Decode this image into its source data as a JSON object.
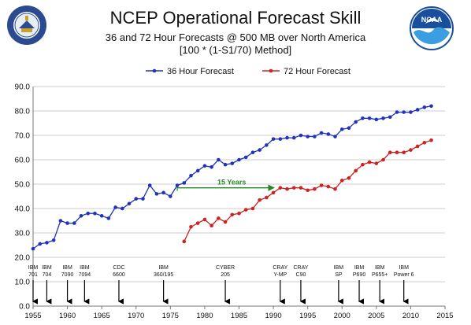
{
  "header": {
    "title": "NCEP Operational Forecast Skill",
    "subtitle_1": "36 and 72 Hour Forecasts @ 500 MB over North America",
    "subtitle_2": "[100 * (1-S1/70) Method]",
    "logo_left": "department-of-commerce-seal",
    "logo_right": "NOAA"
  },
  "chart_data": {
    "type": "line",
    "title": "NCEP Operational Forecast Skill",
    "xlim": [
      1955,
      2015
    ],
    "ylim": [
      0,
      90
    ],
    "xticks": [
      1955,
      1960,
      1965,
      1970,
      1975,
      1980,
      1985,
      1990,
      1995,
      2000,
      2005,
      2010,
      2015
    ],
    "yticks": [
      0,
      10,
      20,
      30,
      40,
      50,
      60,
      70,
      80,
      90
    ],
    "y_tick_labels": [
      "0.0",
      "10.0",
      "20.0",
      "30.0",
      "40.0",
      "50.0",
      "60.0",
      "70.0",
      "80.0",
      "90.0"
    ],
    "grid": "horizontal",
    "legend_position": "top",
    "series": [
      {
        "name": "36 Hour Forecast",
        "color": "#2233bb",
        "points": [
          [
            1955,
            23.5
          ],
          [
            1956,
            25.5
          ],
          [
            1957,
            26.0
          ],
          [
            1958,
            27.0
          ],
          [
            1959,
            35.0
          ],
          [
            1960,
            34.0
          ],
          [
            1961,
            34.0
          ],
          [
            1962,
            37.0
          ],
          [
            1963,
            38.0
          ],
          [
            1964,
            38.0
          ],
          [
            1965,
            37.0
          ],
          [
            1966,
            36.0
          ],
          [
            1967,
            40.5
          ],
          [
            1968,
            40.0
          ],
          [
            1969,
            42.0
          ],
          [
            1970,
            44.0
          ],
          [
            1971,
            44.0
          ],
          [
            1972,
            49.5
          ],
          [
            1973,
            46.0
          ],
          [
            1974,
            46.5
          ],
          [
            1975,
            45.0
          ],
          [
            1976,
            49.5
          ],
          [
            1977,
            50.5
          ],
          [
            1978,
            53.5
          ],
          [
            1979,
            55.5
          ],
          [
            1980,
            57.5
          ],
          [
            1981,
            57.0
          ],
          [
            1982,
            60.0
          ],
          [
            1983,
            58.0
          ],
          [
            1984,
            58.5
          ],
          [
            1985,
            60.0
          ],
          [
            1986,
            61.0
          ],
          [
            1987,
            63.0
          ],
          [
            1988,
            64.0
          ],
          [
            1989,
            66.0
          ],
          [
            1990,
            68.5
          ],
          [
            1991,
            68.5
          ],
          [
            1992,
            69.0
          ],
          [
            1993,
            69.0
          ],
          [
            1994,
            70.0
          ],
          [
            1995,
            69.5
          ],
          [
            1996,
            69.5
          ],
          [
            1997,
            71.0
          ],
          [
            1998,
            70.5
          ],
          [
            1999,
            69.5
          ],
          [
            2000,
            72.5
          ],
          [
            2001,
            73.0
          ],
          [
            2002,
            75.5
          ],
          [
            2003,
            77.0
          ],
          [
            2004,
            77.0
          ],
          [
            2005,
            76.5
          ],
          [
            2006,
            77.0
          ],
          [
            2007,
            77.5
          ],
          [
            2008,
            79.5
          ],
          [
            2009,
            79.5
          ],
          [
            2010,
            79.5
          ],
          [
            2011,
            80.5
          ],
          [
            2012,
            81.5
          ],
          [
            2013,
            82.0
          ]
        ]
      },
      {
        "name": "72 Hour Forecast",
        "color": "#cc2222",
        "points": [
          [
            1977,
            26.5
          ],
          [
            1978,
            32.5
          ],
          [
            1979,
            34.0
          ],
          [
            1980,
            35.5
          ],
          [
            1981,
            33.0
          ],
          [
            1982,
            36.0
          ],
          [
            1983,
            34.5
          ],
          [
            1984,
            37.5
          ],
          [
            1985,
            38.0
          ],
          [
            1986,
            39.5
          ],
          [
            1987,
            40.0
          ],
          [
            1988,
            43.5
          ],
          [
            1989,
            44.5
          ],
          [
            1990,
            46.5
          ],
          [
            1991,
            48.5
          ],
          [
            1992,
            48.0
          ],
          [
            1993,
            48.5
          ],
          [
            1994,
            48.5
          ],
          [
            1995,
            47.5
          ],
          [
            1996,
            48.0
          ],
          [
            1997,
            49.5
          ],
          [
            1998,
            49.0
          ],
          [
            1999,
            48.0
          ],
          [
            2000,
            51.5
          ],
          [
            2001,
            52.5
          ],
          [
            2002,
            55.5
          ],
          [
            2003,
            58.0
          ],
          [
            2004,
            59.0
          ],
          [
            2005,
            58.5
          ],
          [
            2006,
            60.0
          ],
          [
            2007,
            63.0
          ],
          [
            2008,
            63.0
          ],
          [
            2009,
            63.0
          ],
          [
            2010,
            64.0
          ],
          [
            2011,
            65.5
          ],
          [
            2012,
            67.0
          ],
          [
            2013,
            68.0
          ]
        ]
      }
    ],
    "annotations": [
      {
        "type": "range-arrow",
        "label": "15 Years",
        "x_start": 1976,
        "x_end": 1990.5,
        "y": 48.5,
        "color": "#228822"
      }
    ],
    "computers": [
      {
        "name": "IBM 701",
        "lines": [
          "IBM",
          "701"
        ],
        "year": 1955
      },
      {
        "name": "IBM 704",
        "lines": [
          "IBM",
          "704"
        ],
        "year": 1957
      },
      {
        "name": "IBM 7090",
        "lines": [
          "IBM",
          "7090"
        ],
        "year": 1960
      },
      {
        "name": "IBM 7094",
        "lines": [
          "IBM",
          "7094"
        ],
        "year": 1962.5
      },
      {
        "name": "CDC 6600",
        "lines": [
          "CDC",
          "6600"
        ],
        "year": 1967.5
      },
      {
        "name": "IBM 360/195",
        "lines": [
          "IBM",
          "360/195"
        ],
        "year": 1974
      },
      {
        "name": "CYBER 205",
        "lines": [
          "CYBER",
          "205"
        ],
        "year": 1983
      },
      {
        "name": "CRAY Y-MP",
        "lines": [
          "CRAY",
          "Y-MP"
        ],
        "year": 1991
      },
      {
        "name": "CRAY C90",
        "lines": [
          "CRAY",
          "C90"
        ],
        "year": 1994
      },
      {
        "name": "IBM SP",
        "lines": [
          "IBM",
          "SP"
        ],
        "year": 1999.5
      },
      {
        "name": "IBM P690",
        "lines": [
          "IBM",
          "P690"
        ],
        "year": 2002.5
      },
      {
        "name": "IBM P655+",
        "lines": [
          "IBM",
          "P655+"
        ],
        "year": 2005.5
      },
      {
        "name": "IBM Power 6",
        "lines": [
          "IBM",
          "Power 6"
        ],
        "year": 2009
      }
    ]
  }
}
